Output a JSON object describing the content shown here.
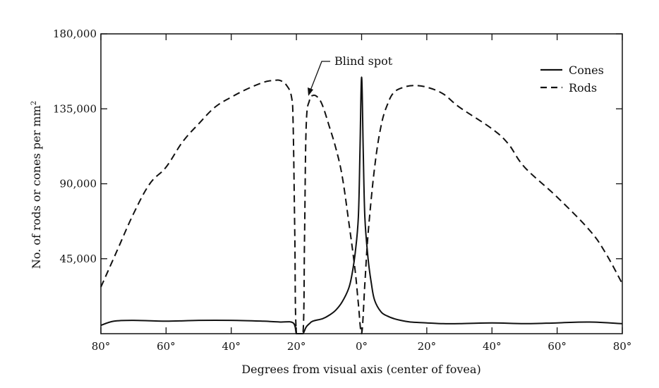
{
  "chart_data": {
    "type": "line",
    "title": "",
    "xlabel": "Degrees from visual axis (center of fovea)",
    "ylabel": "No. of rods or cones per mm",
    "ylabel_superscript": "2",
    "xlim": [
      -80,
      80
    ],
    "ylim": [
      0,
      180000
    ],
    "x_ticks": [
      -80,
      -60,
      -40,
      -20,
      0,
      20,
      40,
      60,
      80
    ],
    "x_tick_labels": [
      "80°",
      "60°",
      "40°",
      "20°",
      "0°",
      "20°",
      "40°",
      "60°",
      "80°"
    ],
    "y_ticks": [
      45000,
      90000,
      135000,
      180000
    ],
    "y_tick_labels": [
      "45,000",
      "90,000",
      "135,000",
      "180,000"
    ],
    "grid": false,
    "legend_position": "top-right",
    "annotation": {
      "text": "Blind spot",
      "x": -17.5,
      "y": 145000
    },
    "series": [
      {
        "name": "Cones",
        "style": "solid",
        "x": [
          -80,
          -76,
          -70,
          -60,
          -50,
          -40,
          -30,
          -25,
          -21,
          -20,
          -19,
          -18,
          -17,
          -16,
          -15,
          -12,
          -10,
          -8,
          -6,
          -4,
          -3,
          -2,
          -1,
          -0.5,
          0,
          0.5,
          1,
          2,
          3,
          4,
          6,
          8,
          10,
          12,
          15,
          20,
          25,
          30,
          40,
          50,
          60,
          70,
          80
        ],
        "y": [
          5000,
          7500,
          8000,
          7500,
          8000,
          8000,
          7500,
          7000,
          6500,
          0,
          0,
          0,
          4000,
          6000,
          7500,
          9000,
          11000,
          14000,
          19000,
          27000,
          35000,
          48000,
          70000,
          110000,
          154000,
          110000,
          70000,
          45000,
          30000,
          20000,
          13000,
          10500,
          9000,
          8000,
          7000,
          6500,
          6000,
          6000,
          6500,
          6000,
          6500,
          7000,
          6000
        ]
      },
      {
        "name": "Rods",
        "style": "dashed",
        "x": [
          -80,
          -75,
          -70,
          -65,
          -60,
          -55,
          -50,
          -45,
          -40,
          -35,
          -30,
          -27,
          -25,
          -23,
          -21.5,
          -21,
          -20.5,
          -20,
          -18,
          -17.5,
          -17,
          -16,
          -15,
          -13.5,
          -12,
          -10,
          -8,
          -6,
          -4,
          -2,
          -1,
          0,
          1,
          2,
          4,
          6,
          8,
          10,
          13,
          16,
          20,
          25,
          30,
          40,
          45,
          50,
          60,
          70,
          75,
          80
        ],
        "y": [
          28000,
          50000,
          72000,
          90000,
          100000,
          115000,
          126000,
          136000,
          142000,
          147000,
          151000,
          152000,
          152000,
          149000,
          142000,
          125000,
          60000,
          0,
          0,
          60000,
          125000,
          140000,
          143000,
          142000,
          137000,
          125000,
          112000,
          95000,
          68000,
          38000,
          18000,
          0,
          30000,
          60000,
          100000,
          125000,
          138000,
          145000,
          148000,
          149000,
          148000,
          144000,
          136000,
          123000,
          114000,
          100000,
          82000,
          62000,
          48000,
          30000
        ]
      }
    ]
  }
}
